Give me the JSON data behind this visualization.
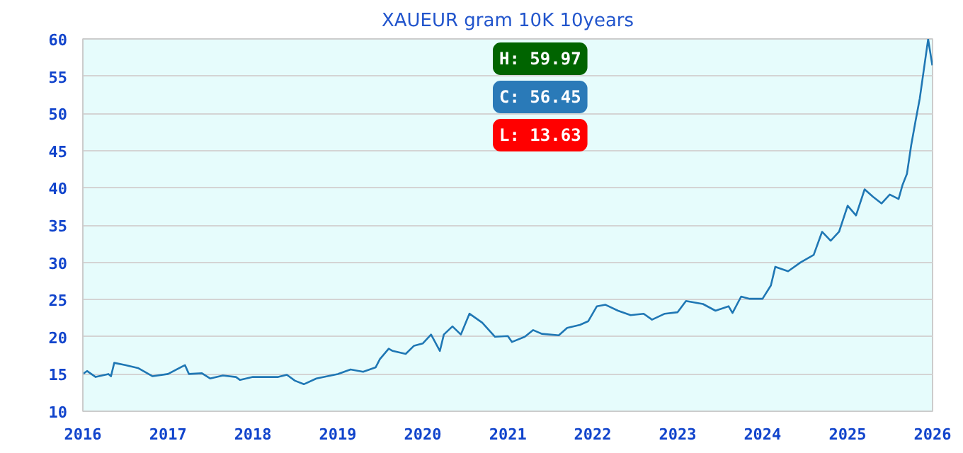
{
  "chart_data": {
    "type": "line",
    "title": "XAUEUR gram 10K 10years",
    "x": [
      "2016-01-01",
      "2016-01-19",
      "2016-02-25",
      "2016-04-20",
      "2016-05-01",
      "2016-05-15",
      "2016-07-01",
      "2016-08-25",
      "2016-10-27",
      "2017-01-01",
      "2017-03-15",
      "2017-04-01",
      "2017-05-27",
      "2017-07-01",
      "2017-08-25",
      "2017-10-20",
      "2017-11-07",
      "2018-01-01",
      "2018-04-20",
      "2018-05-27",
      "2018-07-01",
      "2018-08-08",
      "2018-10-01",
      "2019-01-01",
      "2019-02-25",
      "2019-04-20",
      "2019-06-13",
      "2019-07-01",
      "2019-08-08",
      "2019-08-25",
      "2019-10-20",
      "2019-11-25",
      "2020-01-01",
      "2020-02-06",
      "2020-03-15",
      "2020-04-01",
      "2020-05-08",
      "2020-06-13",
      "2020-07-20",
      "2020-09-13",
      "2020-11-07",
      "2021-01-01",
      "2021-01-19",
      "2021-03-15",
      "2021-04-20",
      "2021-05-27",
      "2021-08-08",
      "2021-09-13",
      "2021-11-07",
      "2021-12-13",
      "2022-01-19",
      "2022-02-25",
      "2022-04-20",
      "2022-06-13",
      "2022-08-08",
      "2022-09-13",
      "2022-11-07",
      "2023-01-01",
      "2023-02-06",
      "2023-04-20",
      "2023-06-13",
      "2023-08-08",
      "2023-08-25",
      "2023-10-01",
      "2023-11-07",
      "2024-01-01",
      "2024-02-06",
      "2024-02-25",
      "2024-04-20",
      "2024-06-13",
      "2024-08-08",
      "2024-09-13",
      "2024-10-20",
      "2024-11-25",
      "2025-01-01",
      "2025-02-06",
      "2025-03-15",
      "2025-04-20",
      "2025-05-27",
      "2025-07-01",
      "2025-08-08",
      "2025-08-25",
      "2025-09-13",
      "2025-10-01",
      "2025-10-20",
      "2025-11-07",
      "2025-12-13",
      "2025-12-31"
    ],
    "series": [
      {
        "color": "#1f77b4",
        "values": [
          15.0,
          15.4,
          14.6,
          15.0,
          14.7,
          16.5,
          16.2,
          15.8,
          14.7,
          15.0,
          16.2,
          15.0,
          15.1,
          14.4,
          14.8,
          14.6,
          14.2,
          14.6,
          14.6,
          14.9,
          14.1,
          13.63,
          14.4,
          15.0,
          15.6,
          15.3,
          15.9,
          17.0,
          18.4,
          18.1,
          17.7,
          18.8,
          19.1,
          20.3,
          18.1,
          20.3,
          21.4,
          20.3,
          23.1,
          21.9,
          20.0,
          20.1,
          19.3,
          20.0,
          20.9,
          20.4,
          20.2,
          21.2,
          21.6,
          22.1,
          24.1,
          24.3,
          23.5,
          22.9,
          23.1,
          22.3,
          23.1,
          23.3,
          24.8,
          24.4,
          23.5,
          24.1,
          23.2,
          25.4,
          25.1,
          25.1,
          26.9,
          29.4,
          28.8,
          30.0,
          31.0,
          34.1,
          32.9,
          34.1,
          37.6,
          36.3,
          39.8,
          38.8,
          37.9,
          39.1,
          38.5,
          40.4,
          41.9,
          45.7,
          49.0,
          52.0,
          59.97,
          56.45
        ]
      }
    ],
    "xlim": [
      "2016-01-01",
      "2026-01-01"
    ],
    "xticks": [
      {
        "value": "2016-01-01",
        "label": "2016"
      },
      {
        "value": "2017-01-01",
        "label": "2017"
      },
      {
        "value": "2018-01-01",
        "label": "2018"
      },
      {
        "value": "2019-01-01",
        "label": "2019"
      },
      {
        "value": "2020-01-01",
        "label": "2020"
      },
      {
        "value": "2021-01-01",
        "label": "2021"
      },
      {
        "value": "2022-01-01",
        "label": "2022"
      },
      {
        "value": "2023-01-01",
        "label": "2023"
      },
      {
        "value": "2024-01-01",
        "label": "2024"
      },
      {
        "value": "2025-01-01",
        "label": "2025"
      },
      {
        "value": "2026-01-01",
        "label": "2026"
      }
    ],
    "ylim": [
      10,
      60
    ],
    "yticks": [
      10,
      15,
      20,
      25,
      30,
      35,
      40,
      45,
      50,
      55,
      60
    ],
    "grid": "y",
    "annotations": [
      "H: 59.97",
      "C: 56.45",
      "L: 13.63"
    ]
  }
}
